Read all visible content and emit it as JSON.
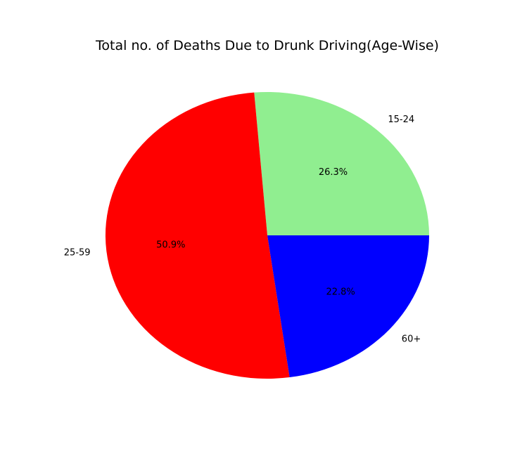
{
  "chart_data": {
    "type": "pie",
    "title": "Total no. of Deaths Due to Drunk Driving(Age-Wise)",
    "start_angle_deg": 0,
    "direction": "counterclockwise",
    "slices": [
      {
        "label": "15-24",
        "value": 26.3,
        "pct_label": "26.3%",
        "color": "#90EE90"
      },
      {
        "label": "25-59",
        "value": 50.9,
        "pct_label": "50.9%",
        "color": "#FF0000"
      },
      {
        "label": "60+",
        "value": 22.8,
        "pct_label": "22.8%",
        "color": "#0000FF"
      }
    ]
  }
}
